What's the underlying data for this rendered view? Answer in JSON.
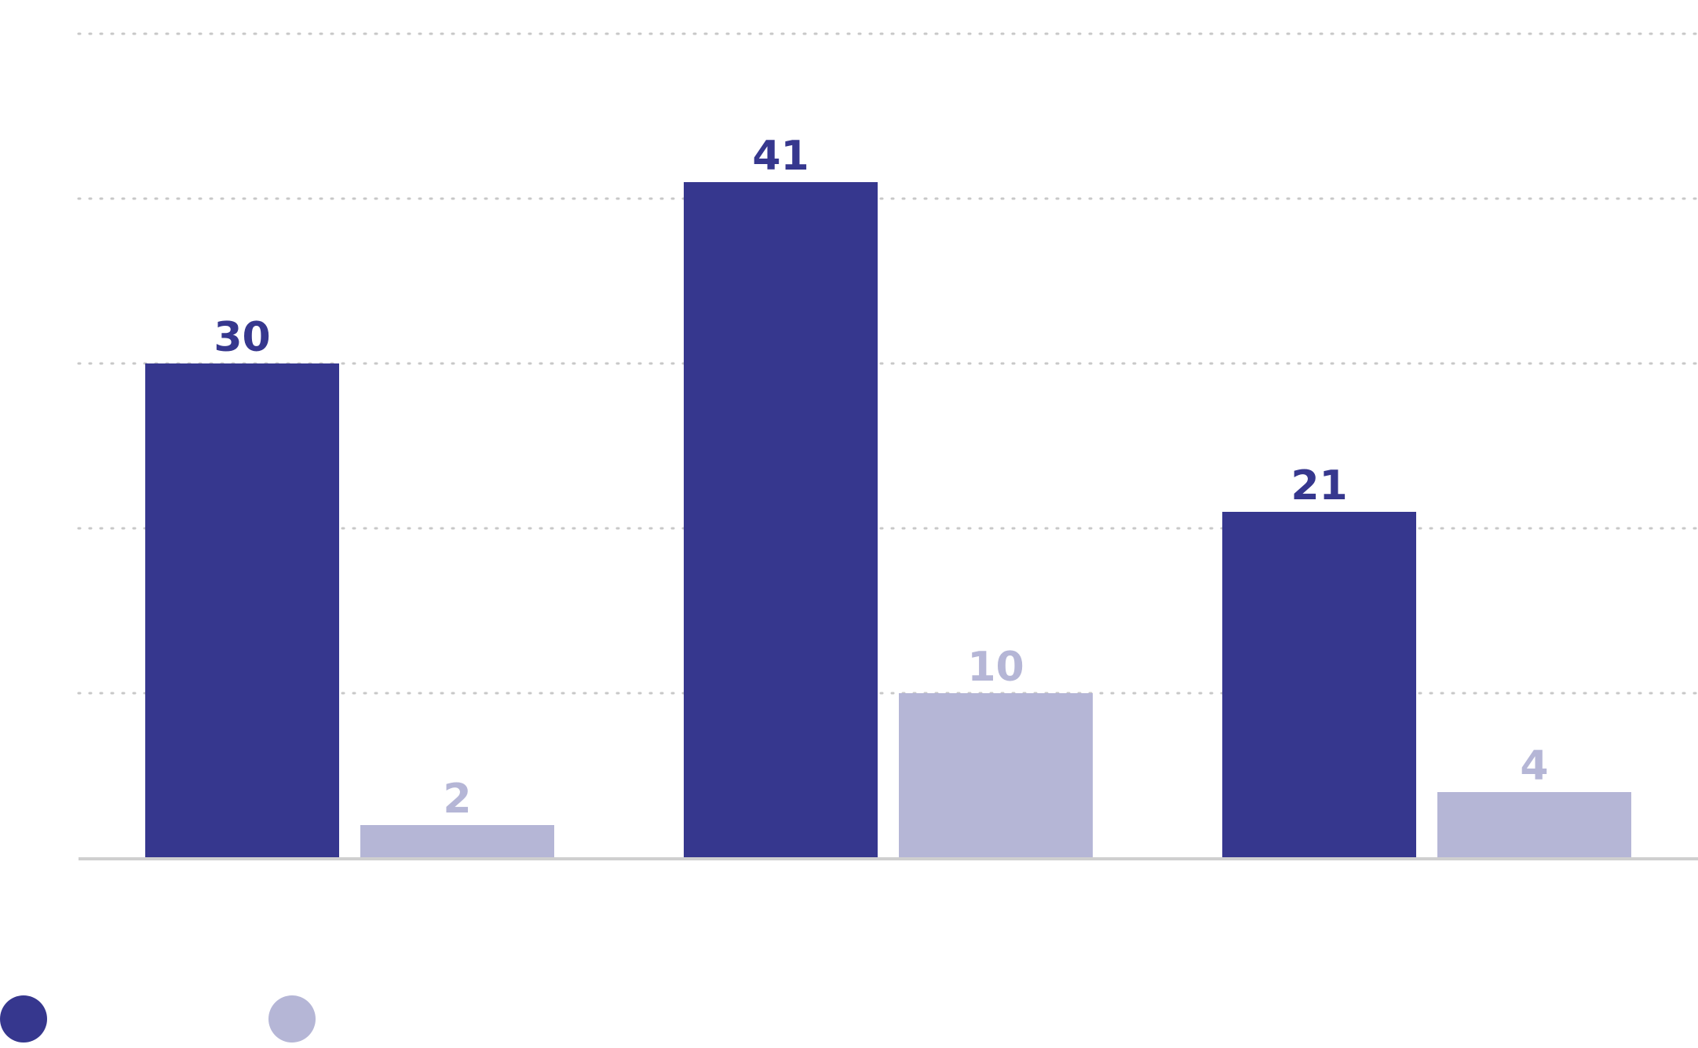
{
  "chart_data": {
    "type": "bar",
    "title": "",
    "xlabel": "",
    "ylabel": "",
    "categories": [
      "",
      "",
      ""
    ],
    "ylim": [
      0,
      50
    ],
    "gridlines": [
      10,
      20,
      30,
      40,
      50
    ],
    "grid": true,
    "legend_position": "bottom-left",
    "series": [
      {
        "name": "",
        "color": "#36378e",
        "values": [
          30,
          41,
          21
        ],
        "labels": [
          "30",
          "41",
          "21"
        ]
      },
      {
        "name": "",
        "color": "#b5b6d6",
        "values": [
          2,
          10,
          4
        ],
        "labels": [
          "2",
          "10",
          "4"
        ]
      }
    ],
    "colors": {
      "grid": "#c8c8c8",
      "baseline": "#cfcfcf"
    }
  }
}
